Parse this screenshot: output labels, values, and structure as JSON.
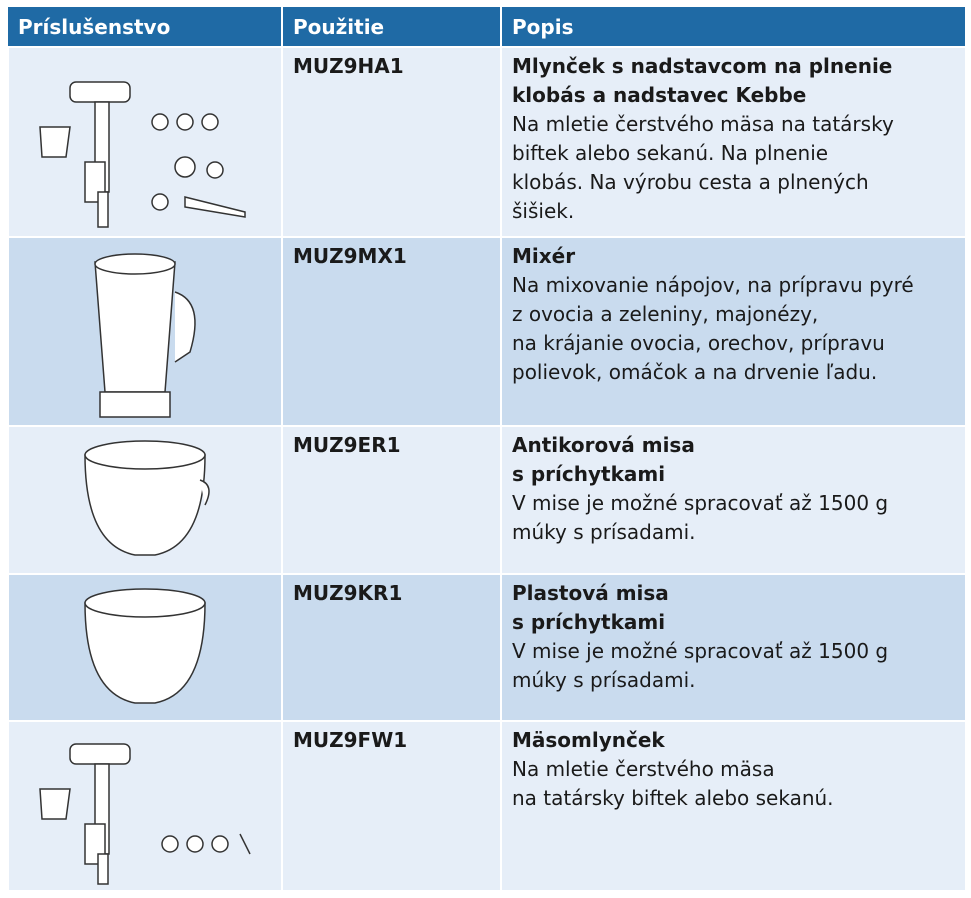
{
  "table": {
    "header": [
      "Príslušenstvo",
      "Použitie",
      "Popis"
    ],
    "rows": [
      {
        "code": "MUZ9HA1",
        "title": [
          "Mlynček s nadstavcom na plnenie",
          "klobás a nadstavec Kebbe"
        ],
        "text": [
          "Na mletie čerstvého mäsa na tatársky",
          "biftek alebo sekanú. Na plnenie",
          "klobás. Na výrobu cesta a plnených",
          "šišiek."
        ]
      },
      {
        "code": "MUZ9MX1",
        "title": [
          "Mixér"
        ],
        "text": [
          "Na mixovanie nápojov, na prípravu pyré",
          "z ovocia a zeleniny, majonézy,",
          "na krájanie ovocia, orechov, prípravu",
          "polievok, omáčok a na drvenie ľadu."
        ]
      },
      {
        "code": "MUZ9ER1",
        "title": [
          "Antikorová misa",
          "s príchytkami"
        ],
        "text": [
          "V mise je možné spracovať až 1500 g",
          "múky s prísadami."
        ]
      },
      {
        "code": "MUZ9KR1",
        "title": [
          "Plastová misa",
          "s príchytkami"
        ],
        "text": [
          "V mise je možné spracovať až 1500 g",
          "múky s prísadami."
        ]
      },
      {
        "code": "MUZ9FW1",
        "title": [
          "Mäsomlynček"
        ],
        "text": [
          "Na mletie čerstvého mäsa",
          "na tatársky biftek alebo sekanú."
        ]
      }
    ]
  }
}
